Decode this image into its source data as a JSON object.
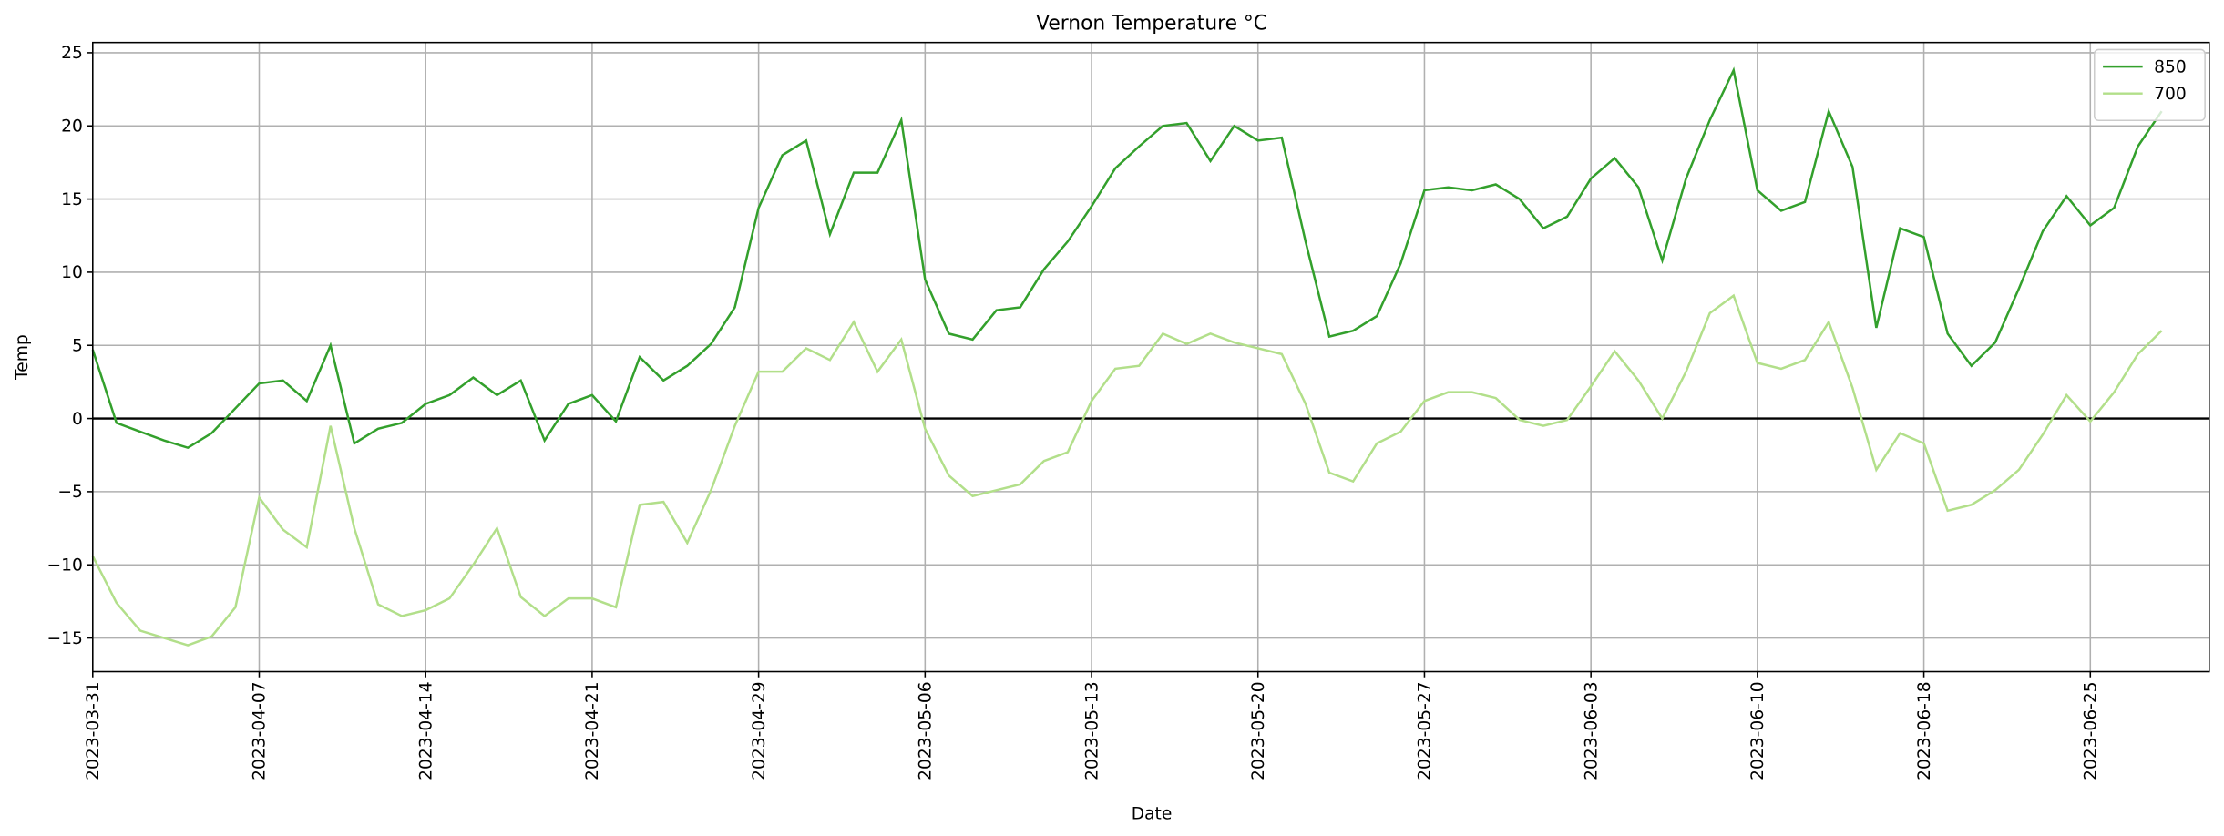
{
  "chart_data": {
    "type": "line",
    "title": "Vernon Temperature °C",
    "xlabel": "Date",
    "ylabel": "Temp",
    "categories": [
      "2023-03-31",
      null,
      null,
      null,
      null,
      null,
      null,
      "2023-04-07",
      null,
      null,
      null,
      null,
      null,
      null,
      "2023-04-14",
      null,
      null,
      null,
      null,
      null,
      null,
      "2023-04-21",
      null,
      null,
      null,
      null,
      null,
      null,
      "2023-04-29",
      null,
      null,
      null,
      null,
      null,
      null,
      "2023-05-06",
      null,
      null,
      null,
      null,
      null,
      null,
      "2023-05-13",
      null,
      null,
      null,
      null,
      null,
      null,
      "2023-05-20",
      null,
      null,
      null,
      null,
      null,
      null,
      "2023-05-27",
      null,
      null,
      null,
      null,
      null,
      null,
      "2023-06-03",
      null,
      null,
      null,
      null,
      null,
      null,
      "2023-06-10",
      null,
      null,
      null,
      null,
      null,
      null,
      "2023-06-18",
      null,
      null,
      null,
      null,
      null,
      null,
      "2023-06-25",
      null,
      null,
      null
    ],
    "series": [
      {
        "name": "850",
        "color": "#33a02c",
        "values": [
          4.7,
          -0.3,
          -0.9,
          -1.5,
          -2.0,
          -1.0,
          0.7,
          2.4,
          2.6,
          1.2,
          5.0,
          -1.7,
          -0.7,
          -0.3,
          1.0,
          1.6,
          2.8,
          1.6,
          2.6,
          -1.5,
          1.0,
          1.6,
          -0.2,
          4.2,
          2.6,
          3.6,
          5.1,
          7.6,
          14.4,
          18.0,
          19.0,
          12.6,
          16.8,
          16.8,
          20.4,
          9.5,
          5.8,
          5.4,
          7.4,
          7.6,
          10.2,
          12.1,
          14.5,
          17.1,
          18.6,
          20.0,
          20.2,
          17.6,
          20.0,
          19.0,
          19.2,
          12.1,
          5.6,
          6.0,
          7.0,
          10.6,
          15.6,
          15.8,
          15.6,
          16.0,
          15.0,
          13.0,
          13.8,
          16.4,
          17.8,
          15.8,
          10.8,
          16.4,
          20.4,
          23.8,
          15.6,
          14.2,
          14.8,
          21.0,
          17.2,
          6.2,
          13.0,
          12.4,
          5.8,
          3.6,
          5.2,
          8.9,
          12.8,
          15.2,
          13.2,
          14.4,
          18.6,
          21.0
        ]
      },
      {
        "name": "700",
        "color": "#b2df8a",
        "values": [
          -9.4,
          -12.6,
          -14.5,
          -15.0,
          -15.5,
          -14.9,
          -12.9,
          -5.4,
          -7.6,
          -8.8,
          -0.5,
          -7.5,
          -12.7,
          -13.5,
          -13.1,
          -12.3,
          -10.0,
          -7.5,
          -12.2,
          -13.5,
          -12.3,
          -12.3,
          -12.9,
          -5.9,
          -5.7,
          -8.5,
          -4.9,
          -0.5,
          3.2,
          3.2,
          4.8,
          4.0,
          6.6,
          3.2,
          5.4,
          -0.7,
          -3.9,
          -5.3,
          -4.9,
          -4.5,
          -2.9,
          -2.3,
          1.2,
          3.4,
          3.6,
          5.8,
          5.1,
          5.8,
          5.2,
          4.8,
          4.4,
          1.0,
          -3.7,
          -4.3,
          -1.7,
          -0.9,
          1.2,
          1.8,
          1.8,
          1.4,
          -0.1,
          -0.5,
          -0.1,
          2.2,
          4.6,
          2.6,
          0.0,
          3.2,
          7.2,
          8.4,
          3.8,
          3.4,
          4.0,
          6.6,
          2.1,
          -3.5,
          -1.0,
          -1.7,
          -6.3,
          -5.9,
          -4.9,
          -3.5,
          -1.1,
          1.6,
          -0.2,
          1.8,
          4.4,
          6.0
        ]
      }
    ],
    "xlim": [
      0,
      89
    ],
    "ylim": [
      -17.3,
      25.7
    ],
    "yticks": [
      {
        "value": -15,
        "label": "−15"
      },
      {
        "value": -10,
        "label": "−10"
      },
      {
        "value": -5,
        "label": "−5"
      },
      0,
      5,
      10,
      15,
      20,
      25
    ],
    "hline": 0,
    "grid": true,
    "legend": "upper right"
  }
}
